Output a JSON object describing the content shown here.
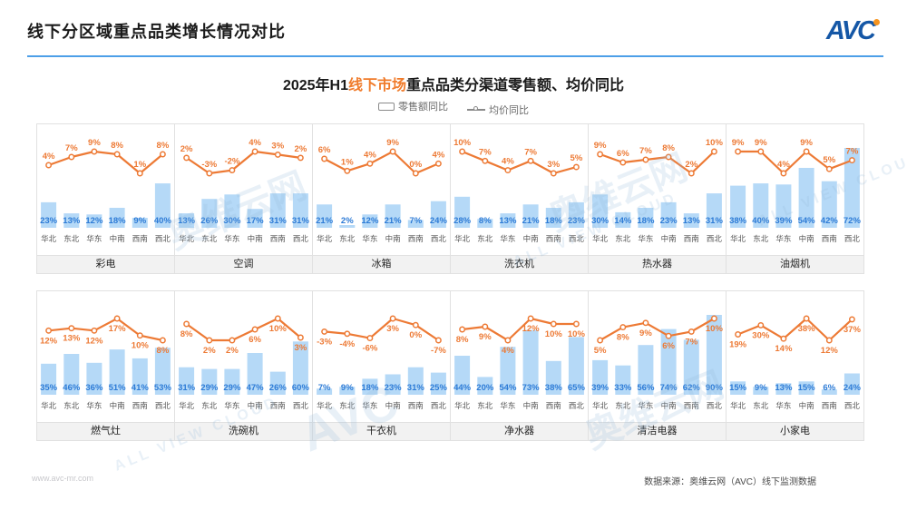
{
  "header": {
    "title": "线下分区域重点品类增长情况对比",
    "logo_text": "AVC"
  },
  "chart_title": {
    "prefix": "2025年H1",
    "highlight": "线下市场",
    "suffix": "重点品类分渠道零售额、均价同比"
  },
  "legend": {
    "bar_label": "零售额同比",
    "line_label": "均价同比"
  },
  "watermark": {
    "cn": "奥维云网",
    "abbr": "AVC",
    "en": "ALL VIEW CLOUD"
  },
  "footer": {
    "website": "www.avc-mr.com",
    "source": "数据来源：奥维云网（AVC）线下监测数据"
  },
  "colors": {
    "bar_fill": "#B5D9F7",
    "bar_label": "#2D7BD6",
    "line": "#ED7A35",
    "region_label": "#555555",
    "header_rule": "#4D9FE8",
    "accent_orange": "#F07C2C",
    "logo_blue": "#1557A6",
    "logo_dot_orange": "#F7941D"
  },
  "chart_data": {
    "type": "bar",
    "note": "combo bar+line small multiples; bar = 零售额同比 (%), line = 均价同比 (%)",
    "categories": [
      "华北",
      "东北",
      "华东",
      "中南",
      "西南",
      "西北"
    ],
    "unit": "%",
    "series_names": {
      "bar": "零售额同比",
      "line": "均价同比"
    },
    "charts": [
      {
        "title": "彩电",
        "row": 1,
        "bar": [
          23,
          13,
          12,
          18,
          9,
          40
        ],
        "line": [
          4,
          7,
          9,
          8,
          1,
          8
        ],
        "line_label_position": "above"
      },
      {
        "title": "空调",
        "row": 1,
        "bar": [
          13,
          26,
          30,
          17,
          31,
          31
        ],
        "line": [
          2,
          -3,
          -2,
          4,
          3,
          2
        ],
        "line_label_position": "above"
      },
      {
        "title": "冰箱",
        "row": 1,
        "bar": [
          21,
          2,
          12,
          21,
          7,
          24
        ],
        "line": [
          6,
          1,
          4,
          9,
          0,
          4
        ],
        "line_label_position": "above"
      },
      {
        "title": "洗衣机",
        "row": 1,
        "bar": [
          28,
          8,
          13,
          21,
          18,
          23
        ],
        "line": [
          10,
          7,
          4,
          7,
          3,
          5
        ],
        "line_label_position": "above"
      },
      {
        "title": "热水器",
        "row": 1,
        "bar": [
          30,
          14,
          18,
          23,
          13,
          31
        ],
        "line": [
          9,
          6,
          7,
          8,
          2,
          10
        ],
        "line_label_position": "above"
      },
      {
        "title": "油烟机",
        "row": 1,
        "bar": [
          38,
          40,
          39,
          54,
          42,
          72
        ],
        "line": [
          9,
          9,
          4,
          9,
          5,
          7
        ],
        "line_label_position": "above"
      },
      {
        "title": "燃气灶",
        "row": 2,
        "bar": [
          35,
          46,
          36,
          51,
          41,
          53
        ],
        "line": [
          12,
          13,
          12,
          17,
          10,
          8
        ],
        "line_label_position": "below"
      },
      {
        "title": "洗碗机",
        "row": 2,
        "bar": [
          31,
          29,
          29,
          47,
          26,
          60
        ],
        "line": [
          8,
          2,
          2,
          6,
          10,
          3
        ],
        "line_label_position": "below"
      },
      {
        "title": "干衣机",
        "row": 2,
        "bar": [
          7,
          9,
          18,
          23,
          31,
          25
        ],
        "line": [
          -3,
          -4,
          -6,
          3,
          0,
          -7
        ],
        "line_label_position": "below"
      },
      {
        "title": "净水器",
        "row": 2,
        "bar": [
          44,
          20,
          54,
          73,
          38,
          65
        ],
        "line": [
          8,
          9,
          4,
          12,
          10,
          10
        ],
        "line_label_position": "below"
      },
      {
        "title": "清洁电器",
        "row": 2,
        "bar": [
          39,
          33,
          56,
          74,
          62,
          90
        ],
        "line": [
          5,
          8,
          9,
          6,
          7,
          10
        ],
        "line_label_position": "below"
      },
      {
        "title": "小家电",
        "row": 2,
        "bar": [
          15,
          9,
          13,
          15,
          6,
          24
        ],
        "line": [
          19,
          30,
          14,
          38,
          12,
          37
        ],
        "line_label_position": "below"
      }
    ]
  }
}
